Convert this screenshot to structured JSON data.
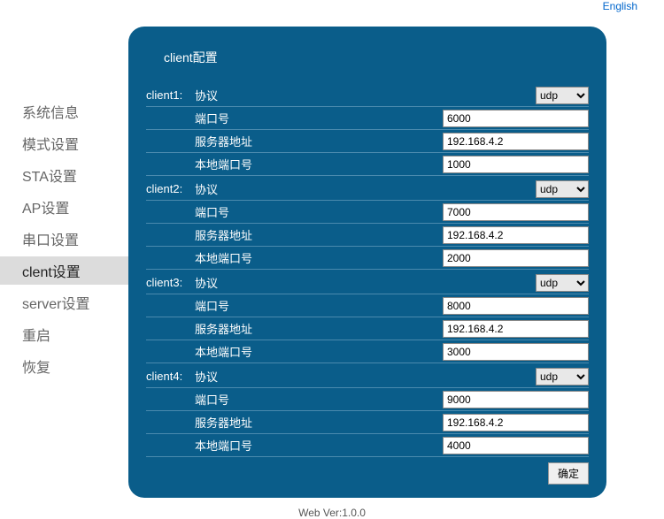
{
  "lang": {
    "sep": " | ",
    "en": "English"
  },
  "sidebar": {
    "items": [
      {
        "label": "系统信息"
      },
      {
        "label": "模式设置"
      },
      {
        "label": "STA设置"
      },
      {
        "label": "AP设置"
      },
      {
        "label": "串口设置"
      },
      {
        "label": "clent设置"
      },
      {
        "label": "server设置"
      },
      {
        "label": "重启"
      },
      {
        "label": "恢复"
      }
    ],
    "active_index": 5
  },
  "panel": {
    "title": "client配置",
    "labels": {
      "protocol": "协议",
      "port": "端口号",
      "server_addr": "服务器地址",
      "local_port": "本地端口号"
    },
    "protocol_option": "udp",
    "clients": [
      {
        "leader": "client1:",
        "protocol": "udp",
        "port": "6000",
        "server": "192.168.4.2",
        "local_port": "1000"
      },
      {
        "leader": "client2:",
        "protocol": "udp",
        "port": "7000",
        "server": "192.168.4.2",
        "local_port": "2000"
      },
      {
        "leader": "client3:",
        "protocol": "udp",
        "port": "8000",
        "server": "192.168.4.2",
        "local_port": "3000"
      },
      {
        "leader": "client4:",
        "protocol": "udp",
        "port": "9000",
        "server": "192.168.4.2",
        "local_port": "4000"
      }
    ],
    "submit": "确定"
  },
  "footer": {
    "version": "Web Ver:1.0.0"
  }
}
